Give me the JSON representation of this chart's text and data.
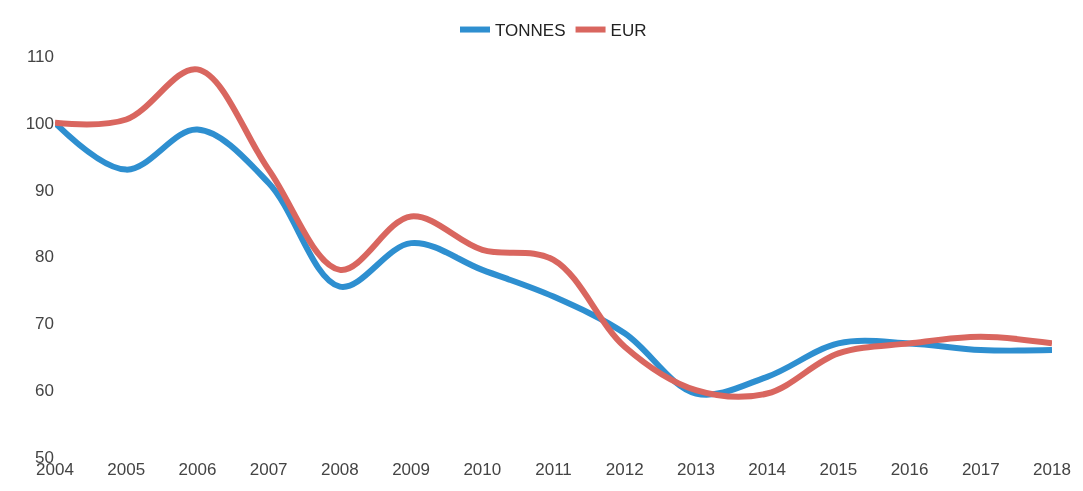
{
  "chart_data": {
    "type": "line",
    "x": [
      2004,
      2005,
      2006,
      2007,
      2008,
      2009,
      2010,
      2011,
      2012,
      2013,
      2014,
      2015,
      2016,
      2017,
      2018
    ],
    "series": [
      {
        "name": "TONNES",
        "color": "#2e8fd0",
        "values": [
          100,
          93,
          99,
          91,
          75.5,
          82,
          78,
          74,
          68.5,
          59.5,
          62,
          67,
          67,
          66,
          66
        ]
      },
      {
        "name": "EUR",
        "color": "#d9665f",
        "values": [
          100,
          100.5,
          108,
          93,
          78,
          86,
          81,
          79.5,
          66.5,
          60,
          59.5,
          65.5,
          67,
          68,
          67
        ]
      }
    ],
    "xlim": [
      2004,
      2018
    ],
    "xticks": [
      2004,
      2005,
      2006,
      2007,
      2008,
      2009,
      2010,
      2011,
      2012,
      2013,
      2014,
      2015,
      2016,
      2017,
      2018
    ],
    "ylim": [
      50,
      110
    ],
    "yticks": [
      50,
      60,
      70,
      80,
      90,
      100,
      110
    ],
    "grid": false,
    "legend": "top",
    "marker": "none",
    "line_style": "solid"
  }
}
